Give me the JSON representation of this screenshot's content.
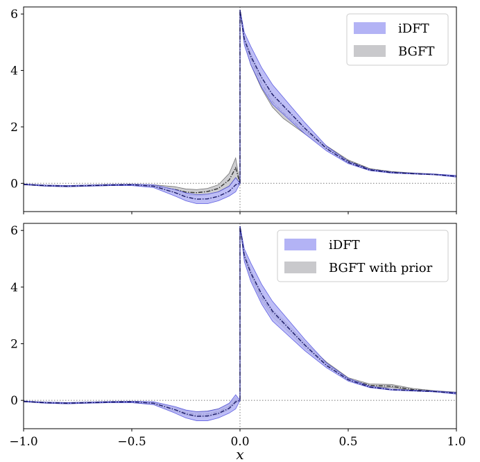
{
  "chart_data": [
    {
      "type": "area",
      "title": "",
      "xlabel": "",
      "ylabel": "",
      "xlim": [
        -1.0,
        1.0
      ],
      "ylim": [
        -1.0,
        6.25
      ],
      "yticks": [
        0,
        2,
        4,
        6
      ],
      "ytick_labels": [
        "0",
        "2",
        "4",
        "6"
      ],
      "xticks": [
        -1.0,
        -0.5,
        0.0,
        0.5,
        1.0
      ],
      "xtick_labels": [],
      "grid": false,
      "legend_position": "top-right",
      "reference_lines": {
        "y": 0,
        "x": 0
      },
      "series": [
        {
          "name": "iDFT",
          "color": "#2b2bd6",
          "fill": "#b3b3f5",
          "x": [
            -1.0,
            -0.9,
            -0.8,
            -0.7,
            -0.6,
            -0.5,
            -0.4,
            -0.3,
            -0.25,
            -0.2,
            -0.15,
            -0.1,
            -0.05,
            -0.02,
            0.0,
            0.0,
            0.02,
            0.05,
            0.1,
            0.15,
            0.2,
            0.3,
            0.4,
            0.5,
            0.6,
            0.7,
            0.8,
            0.9,
            1.0
          ],
          "lower": [
            -0.05,
            -0.1,
            -0.12,
            -0.1,
            -0.08,
            -0.08,
            -0.15,
            -0.45,
            -0.62,
            -0.72,
            -0.72,
            -0.62,
            -0.45,
            -0.3,
            0.0,
            6.15,
            4.9,
            4.2,
            3.4,
            2.8,
            2.45,
            1.75,
            1.15,
            0.7,
            0.45,
            0.36,
            0.33,
            0.3,
            0.22
          ],
          "upper": [
            -0.02,
            -0.06,
            -0.08,
            -0.06,
            -0.04,
            -0.03,
            -0.05,
            -0.22,
            -0.34,
            -0.4,
            -0.38,
            -0.3,
            -0.1,
            0.2,
            0.0,
            6.15,
            5.35,
            4.85,
            4.1,
            3.5,
            3.05,
            2.15,
            1.32,
            0.78,
            0.5,
            0.4,
            0.36,
            0.33,
            0.28
          ],
          "mean": [
            -0.04,
            -0.08,
            -0.1,
            -0.08,
            -0.06,
            -0.05,
            -0.1,
            -0.33,
            -0.48,
            -0.56,
            -0.55,
            -0.46,
            -0.28,
            -0.05,
            0.0,
            6.15,
            5.1,
            4.5,
            3.75,
            3.15,
            2.75,
            1.95,
            1.23,
            0.74,
            0.47,
            0.38,
            0.34,
            0.31,
            0.25
          ]
        },
        {
          "name": "BGFT",
          "color": "#404040",
          "fill": "#c9c9cc",
          "x": [
            -1.0,
            -0.9,
            -0.8,
            -0.7,
            -0.6,
            -0.5,
            -0.4,
            -0.3,
            -0.25,
            -0.2,
            -0.15,
            -0.1,
            -0.05,
            -0.02,
            0.0,
            0.0,
            0.02,
            0.05,
            0.1,
            0.15,
            0.2,
            0.3,
            0.4,
            0.5,
            0.6,
            0.7,
            0.8,
            0.9,
            1.0
          ],
          "lower": [
            -0.05,
            -0.1,
            -0.12,
            -0.1,
            -0.08,
            -0.07,
            -0.12,
            -0.32,
            -0.42,
            -0.44,
            -0.4,
            -0.3,
            -0.1,
            0.2,
            0.0,
            6.15,
            5.0,
            4.2,
            3.35,
            2.7,
            2.3,
            1.75,
            1.22,
            0.75,
            0.47,
            0.38,
            0.34,
            0.31,
            0.25
          ],
          "upper": [
            -0.02,
            -0.06,
            -0.08,
            -0.06,
            -0.04,
            -0.03,
            -0.05,
            -0.12,
            -0.2,
            -0.22,
            -0.18,
            -0.05,
            0.35,
            0.9,
            0.0,
            6.15,
            5.2,
            4.6,
            3.75,
            3.1,
            2.72,
            1.95,
            1.33,
            0.83,
            0.52,
            0.42,
            0.37,
            0.33,
            0.27
          ],
          "mean": [
            -0.04,
            -0.08,
            -0.1,
            -0.08,
            -0.06,
            -0.05,
            -0.09,
            -0.22,
            -0.31,
            -0.33,
            -0.29,
            -0.18,
            0.12,
            0.55,
            0.0,
            6.15,
            5.1,
            4.4,
            3.55,
            2.9,
            2.5,
            1.85,
            1.28,
            0.79,
            0.5,
            0.4,
            0.35,
            0.32,
            0.26
          ]
        }
      ]
    },
    {
      "type": "area",
      "title": "",
      "xlabel": "x",
      "ylabel": "",
      "xlim": [
        -1.0,
        1.0
      ],
      "ylim": [
        -1.0,
        6.25
      ],
      "yticks": [
        0,
        2,
        4,
        6
      ],
      "ytick_labels": [
        "0",
        "2",
        "4",
        "6"
      ],
      "xticks": [
        -1.0,
        -0.5,
        0.0,
        0.5,
        1.0
      ],
      "xtick_labels": [
        "−1.0",
        "−0.5",
        "0.0",
        "0.5",
        "1.0"
      ],
      "grid": false,
      "legend_position": "top-right",
      "reference_lines": {
        "y": 0,
        "x": 0
      },
      "series": [
        {
          "name": "iDFT",
          "color": "#2b2bd6",
          "fill": "#b3b3f5",
          "x": [
            -1.0,
            -0.9,
            -0.8,
            -0.7,
            -0.6,
            -0.5,
            -0.4,
            -0.3,
            -0.25,
            -0.2,
            -0.15,
            -0.1,
            -0.05,
            -0.02,
            0.0,
            0.0,
            0.02,
            0.05,
            0.1,
            0.15,
            0.2,
            0.3,
            0.4,
            0.5,
            0.6,
            0.7,
            0.8,
            0.9,
            1.0
          ],
          "lower": [
            -0.05,
            -0.1,
            -0.12,
            -0.1,
            -0.08,
            -0.08,
            -0.15,
            -0.45,
            -0.62,
            -0.72,
            -0.72,
            -0.62,
            -0.45,
            -0.3,
            0.0,
            6.15,
            4.9,
            4.2,
            3.4,
            2.8,
            2.45,
            1.75,
            1.15,
            0.68,
            0.45,
            0.36,
            0.33,
            0.3,
            0.22
          ],
          "upper": [
            -0.02,
            -0.06,
            -0.08,
            -0.06,
            -0.04,
            -0.03,
            -0.05,
            -0.22,
            -0.34,
            -0.4,
            -0.38,
            -0.3,
            -0.1,
            0.2,
            0.0,
            6.15,
            5.35,
            4.85,
            4.1,
            3.5,
            3.05,
            2.15,
            1.32,
            0.78,
            0.5,
            0.4,
            0.36,
            0.33,
            0.28
          ],
          "mean": [
            -0.04,
            -0.08,
            -0.1,
            -0.08,
            -0.06,
            -0.05,
            -0.1,
            -0.33,
            -0.48,
            -0.56,
            -0.55,
            -0.46,
            -0.28,
            -0.05,
            0.0,
            6.15,
            5.1,
            4.5,
            3.75,
            3.15,
            2.75,
            1.95,
            1.23,
            0.73,
            0.47,
            0.38,
            0.34,
            0.31,
            0.25
          ]
        },
        {
          "name": "BGFT with prior",
          "color": "#404040",
          "fill": "#c9c9cc",
          "x": [
            -1.0,
            -0.9,
            -0.8,
            -0.7,
            -0.6,
            -0.5,
            -0.4,
            -0.3,
            -0.25,
            -0.2,
            -0.15,
            -0.1,
            -0.05,
            -0.02,
            0.0,
            0.0,
            0.02,
            0.05,
            0.1,
            0.15,
            0.2,
            0.3,
            0.4,
            0.5,
            0.6,
            0.7,
            0.8,
            0.9,
            1.0
          ],
          "lower": [
            -0.05,
            -0.1,
            -0.12,
            -0.1,
            -0.08,
            -0.08,
            -0.14,
            -0.4,
            -0.52,
            -0.58,
            -0.58,
            -0.5,
            -0.32,
            -0.1,
            0.0,
            6.15,
            5.0,
            4.3,
            3.5,
            2.95,
            2.6,
            1.85,
            1.22,
            0.7,
            0.48,
            0.45,
            0.35,
            0.31,
            0.24
          ],
          "upper": [
            -0.02,
            -0.06,
            -0.08,
            -0.06,
            -0.04,
            -0.03,
            -0.06,
            -0.26,
            -0.36,
            -0.4,
            -0.38,
            -0.3,
            -0.12,
            0.1,
            0.0,
            6.15,
            5.25,
            4.6,
            3.75,
            3.2,
            2.85,
            2.05,
            1.35,
            0.8,
            0.58,
            0.56,
            0.42,
            0.34,
            0.29
          ],
          "mean": [
            -0.04,
            -0.08,
            -0.1,
            -0.08,
            -0.06,
            -0.05,
            -0.1,
            -0.33,
            -0.44,
            -0.49,
            -0.48,
            -0.4,
            -0.22,
            0.0,
            0.0,
            6.15,
            5.12,
            4.45,
            3.62,
            3.07,
            2.72,
            1.95,
            1.28,
            0.75,
            0.53,
            0.5,
            0.38,
            0.32,
            0.26
          ]
        }
      ]
    }
  ]
}
